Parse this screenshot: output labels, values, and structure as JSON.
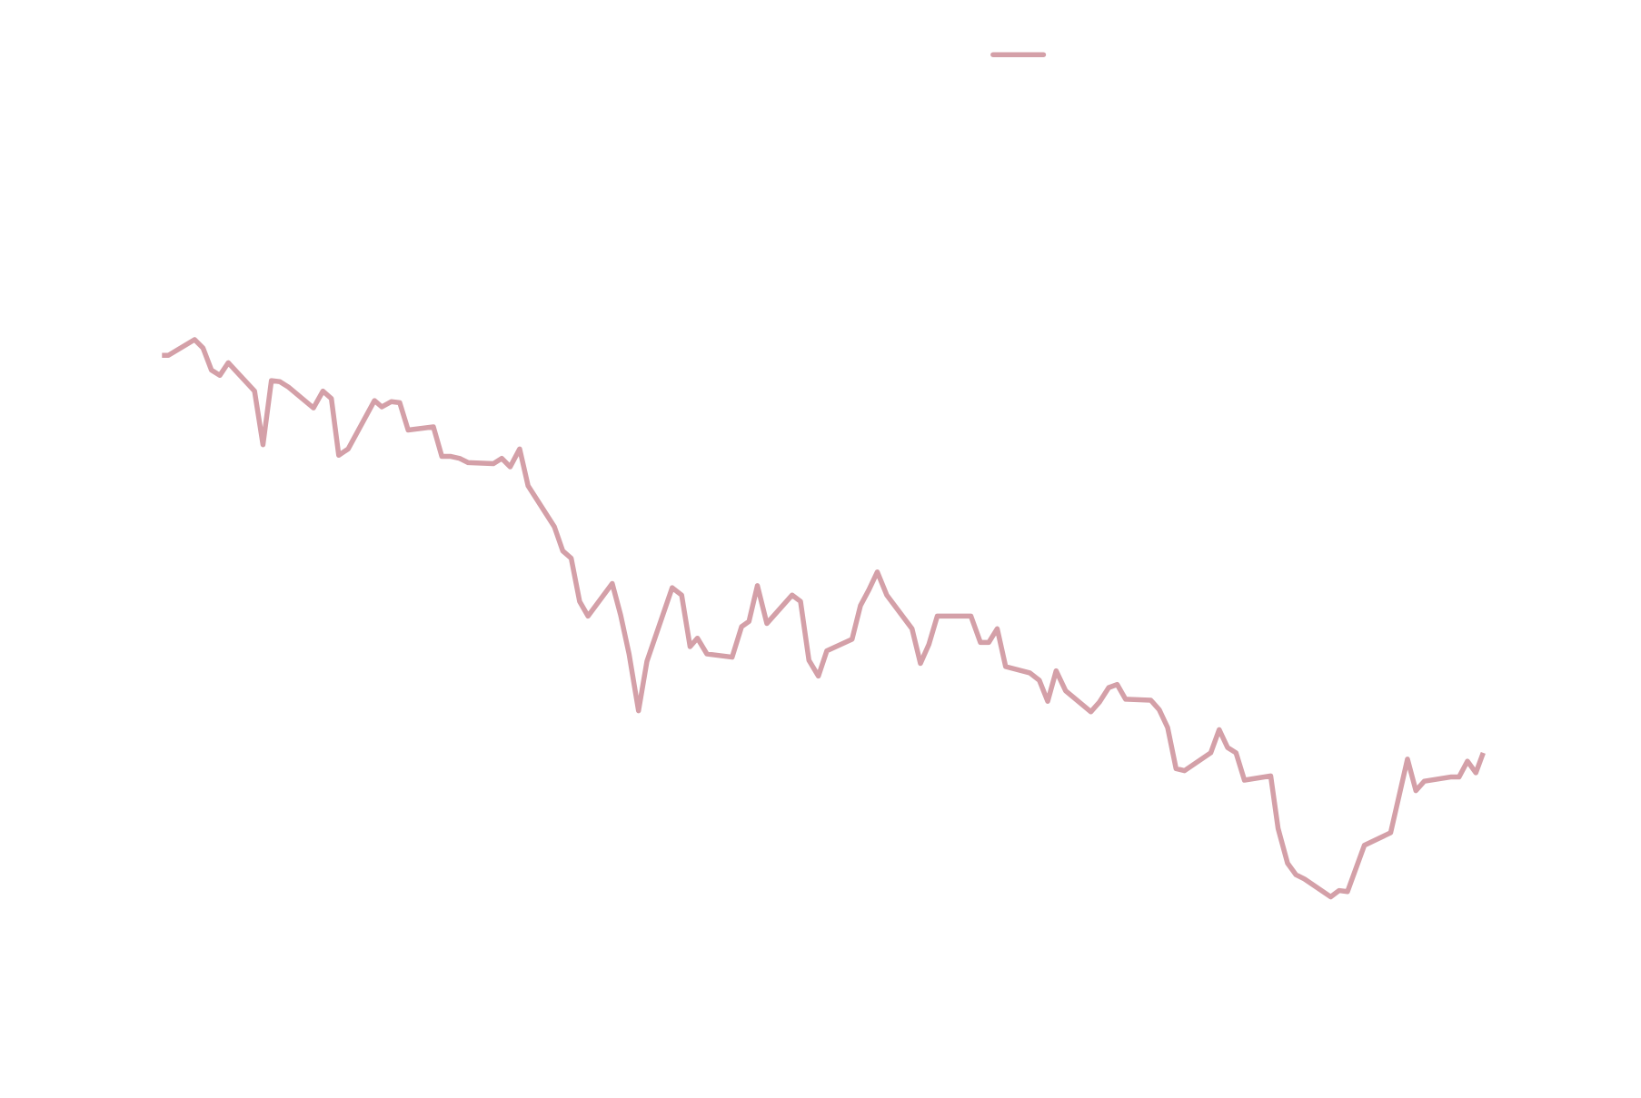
{
  "chart_data": {
    "type": "line",
    "series": [
      {
        "color": "#d4a0a8",
        "x": [
          0,
          6,
          31,
          39,
          47,
          55,
          63,
          88,
          96,
          104,
          112,
          120,
          144,
          153,
          161,
          168,
          177,
          202,
          209,
          218,
          226,
          234,
          258,
          266,
          274,
          283,
          291,
          315,
          323,
          331,
          340,
          348,
          373,
          381,
          389,
          397,
          405,
          428,
          436,
          444,
          453,
          461,
          485,
          494,
          502,
          509,
          518,
          542,
          551,
          558,
          566,
          575,
          599,
          607,
          615,
          624,
          632,
          656,
          664,
          672,
          680,
          689,
          713,
          721,
          729,
          737,
          769,
          778,
          786,
          794,
          802,
          825,
          834,
          842,
          850,
          859,
          883,
          891,
          900,
          908,
          916,
          940,
          948,
          956,
          964,
          972,
          997,
          1005,
          1013,
          1021,
          1029,
          1054,
          1061,
          1070,
          1078,
          1086,
          1111,
          1119,
          1127,
          1143,
          1168,
          1184,
          1192,
          1200,
          1225,
          1233,
          1241,
          1249,
          1256
        ],
        "values": [
          562,
          562,
          577,
          569,
          548,
          543,
          555,
          528,
          477,
          538,
          537,
          532,
          512,
          528,
          521,
          467,
          473,
          519,
          513,
          518,
          517,
          491,
          494,
          466,
          466,
          464,
          460,
          459,
          464,
          456,
          473,
          438,
          399,
          376,
          369,
          328,
          314,
          345,
          315,
          278,
          224,
          271,
          341,
          334,
          285,
          293,
          278,
          275,
          304,
          309,
          343,
          307,
          334,
          328,
          272,
          257,
          281,
          292,
          324,
          339,
          356,
          334,
          302,
          269,
          287,
          314,
          314,
          289,
          289,
          302,
          266,
          260,
          253,
          233,
          262,
          243,
          223,
          232,
          246,
          249,
          235,
          234,
          225,
          208,
          169,
          167,
          184,
          206,
          189,
          184,
          158,
          162,
          112,
          79,
          68,
          64,
          47,
          53,
          52,
          96,
          108,
          178,
          148,
          157,
          161,
          161,
          176,
          165,
          184
        ]
      }
    ],
    "xlim": [
      0,
      1256
    ],
    "ylim": [
      0,
      900
    ],
    "legend": "upper center",
    "grid": false
  }
}
